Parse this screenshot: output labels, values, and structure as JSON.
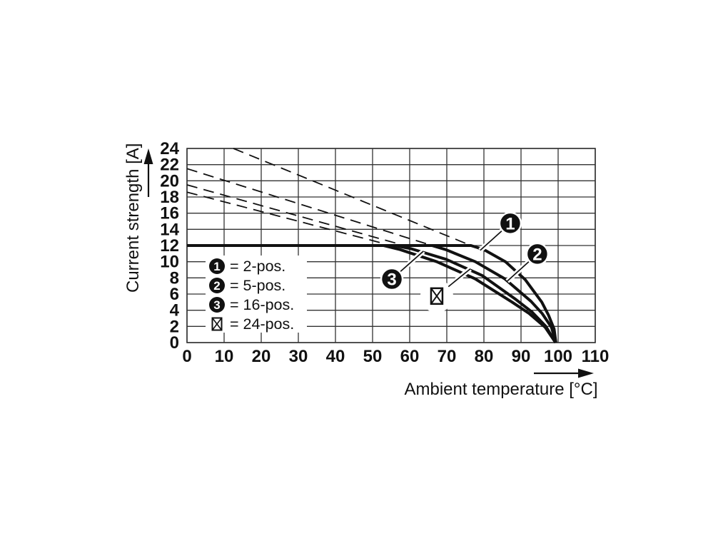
{
  "page": {
    "background": "#ffffff"
  },
  "colors": {
    "ink": "#111111",
    "grid": "#333333",
    "marker_fill": "#111111",
    "marker_text": "#ffffff",
    "legend_bg": "#ffffff"
  },
  "chart_data": {
    "type": "line",
    "title": "",
    "xlabel": "Ambient temperature [°C]",
    "ylabel": "Current strength [A]",
    "xlim": [
      0,
      110
    ],
    "ylim": [
      0,
      24
    ],
    "x_ticks": [
      0,
      10,
      20,
      30,
      40,
      50,
      60,
      70,
      80,
      90,
      100,
      110
    ],
    "y_ticks": [
      0,
      2,
      4,
      6,
      8,
      10,
      12,
      14,
      16,
      18,
      20,
      22,
      24
    ],
    "grid": true,
    "legend_position": "inside lower-left",
    "series": [
      {
        "name": "2-pos.",
        "marker": "1",
        "style": "solid",
        "points": [
          [
            0,
            12
          ],
          [
            76.5,
            12
          ],
          [
            80,
            11.5
          ],
          [
            85.8,
            10.0
          ],
          [
            91.1,
            7.8
          ],
          [
            95.6,
            5.0
          ],
          [
            97.4,
            3.4
          ],
          [
            98.9,
            1.7
          ],
          [
            99.4,
            0
          ]
        ]
      },
      {
        "name": "5-pos.",
        "marker": "2",
        "style": "solid",
        "points": [
          [
            0,
            12
          ],
          [
            66,
            12
          ],
          [
            69.7,
            11.5
          ],
          [
            77.7,
            10.0
          ],
          [
            85.6,
            7.9
          ],
          [
            92.7,
            5.1
          ],
          [
            95.7,
            3.6
          ],
          [
            98.2,
            1.9
          ],
          [
            99.4,
            0
          ]
        ]
      },
      {
        "name": "16-pos.",
        "marker": "3",
        "style": "solid",
        "points": [
          [
            0,
            12
          ],
          [
            56,
            12
          ],
          [
            60.4,
            11.6
          ],
          [
            69.8,
            10.3
          ],
          [
            79.5,
            8.3
          ],
          [
            88.7,
            5.3
          ],
          [
            92.9,
            3.8
          ],
          [
            96.7,
            2.0
          ],
          [
            99.3,
            0
          ]
        ]
      },
      {
        "name": "24-pos.",
        "marker": "x-box",
        "style": "solid",
        "points": [
          [
            0,
            12
          ],
          [
            53,
            12
          ],
          [
            57.4,
            11.5
          ],
          [
            67.3,
            10.0
          ],
          [
            77.6,
            7.9
          ],
          [
            87.6,
            5.0
          ],
          [
            92.2,
            3.6
          ],
          [
            96.5,
            1.9
          ],
          [
            99.3,
            0
          ]
        ]
      }
    ],
    "dashed_guides": [
      {
        "points": [
          [
            12.5,
            24
          ],
          [
            76.5,
            12
          ]
        ]
      },
      {
        "points": [
          [
            0,
            21.5
          ],
          [
            66,
            12
          ]
        ]
      },
      {
        "points": [
          [
            0,
            19.5
          ],
          [
            57,
            12.2
          ]
        ]
      },
      {
        "points": [
          [
            0,
            18.6
          ],
          [
            53,
            12.25
          ]
        ]
      }
    ],
    "legend": {
      "items": [
        {
          "symbol": "1",
          "label": "= 2-pos."
        },
        {
          "symbol": "2",
          "label": "= 5-pos."
        },
        {
          "symbol": "3",
          "label": "= 16-pos."
        },
        {
          "symbol": "x-box",
          "label": "= 24-pos."
        }
      ]
    },
    "annotations": [
      {
        "symbol": "1",
        "x": 87.1,
        "y": 14.75,
        "leader_to": [
          79.0,
          11.4
        ]
      },
      {
        "symbol": "2",
        "x": 94.4,
        "y": 10.95,
        "leader_to": [
          86.3,
          7.6
        ]
      },
      {
        "symbol": "3",
        "x": 55.2,
        "y": 7.85,
        "leader_to": [
          63.7,
          11.3
        ]
      },
      {
        "symbol": "x-box",
        "x": 67.3,
        "y": 5.75,
        "leader_to": [
          76.3,
          9.1
        ]
      }
    ]
  }
}
